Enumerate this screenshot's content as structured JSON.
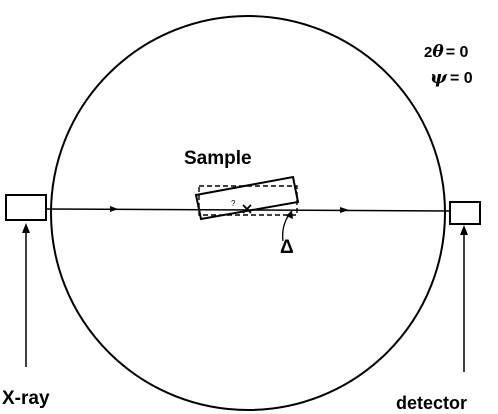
{
  "angles": {
    "two_theta": {
      "coefficient": "2",
      "symbol": "θ",
      "value": "= 0"
    },
    "psi": {
      "symbol": "ψ",
      "value": "= 0"
    }
  },
  "labels": {
    "sample": "Sample",
    "delta": "Δ",
    "xray": "X-ray",
    "detector": "detector"
  },
  "colors": {
    "ink": "#000000",
    "background": "#ffffff"
  }
}
